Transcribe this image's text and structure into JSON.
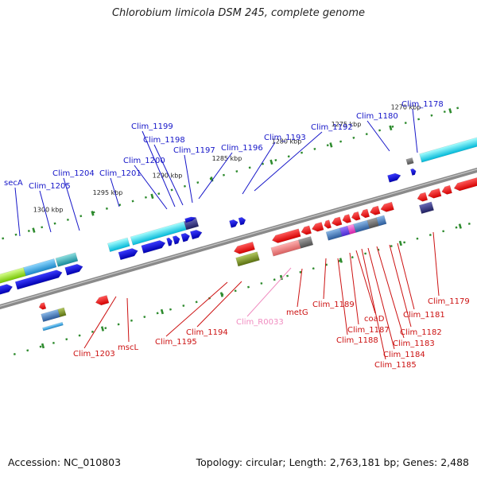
{
  "title": "Chlorobium limicola DSM 245, complete genome",
  "footer": {
    "accession": "Accession: NC_010803",
    "summary": "Topology: circular; Length: 2,763,181 bp; Genes: 2,488"
  },
  "colors": {
    "upper_label": "#1515c8",
    "lower_label": "#cc1111",
    "rna_label": "#f08cc0",
    "backbone": "#8a8a8a",
    "tick": "#2e8b2e"
  },
  "kbp_ticks": [
    "1300 kbp",
    "1295 kbp",
    "1290 kbp",
    "1285 kbp",
    "1280 kbp",
    "1275 kbp",
    "1270 kbp"
  ],
  "upper_genes": [
    "secA",
    "Clim_1205",
    "Clim_1204",
    "Clim_1201",
    "Clim_1200",
    "Clim_1199",
    "Clim_1198",
    "Clim_1197",
    "Clim_1196",
    "Clim_1193",
    "Clim_1192",
    "Clim_1180",
    "Clim_1178"
  ],
  "lower_genes": [
    "Clim_1203",
    "mscL",
    "Clim_1195",
    "Clim_1194",
    "Clim_R0033",
    "metG",
    "Clim_1189",
    "Clim_1188",
    "Clim_1187",
    "coaD",
    "Clim_1185",
    "Clim_1184",
    "Clim_1183",
    "Clim_1182",
    "Clim_1181",
    "Clim_1179"
  ]
}
